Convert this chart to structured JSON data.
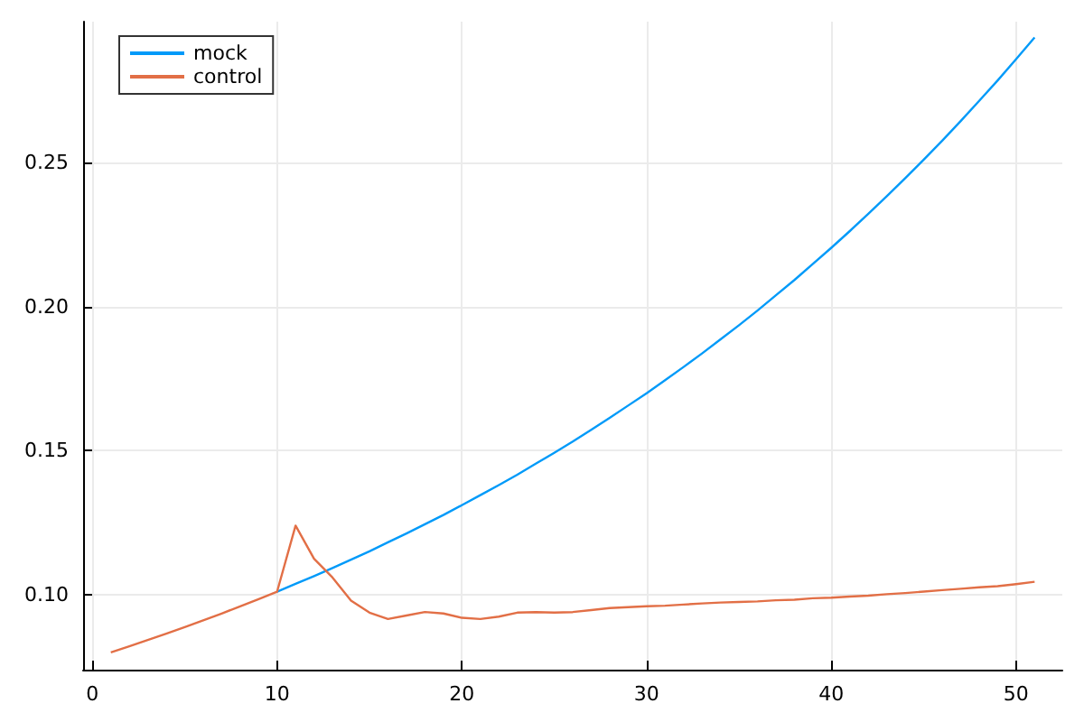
{
  "chart_data": {
    "type": "line",
    "x": [
      1,
      2,
      3,
      4,
      5,
      6,
      7,
      8,
      9,
      10,
      11,
      12,
      13,
      14,
      15,
      16,
      17,
      18,
      19,
      20,
      21,
      22,
      23,
      24,
      25,
      26,
      27,
      28,
      29,
      30,
      31,
      32,
      33,
      34,
      35,
      36,
      37,
      38,
      39,
      40,
      41,
      42,
      43,
      44,
      45,
      46,
      47,
      48,
      49,
      50,
      51
    ],
    "series": [
      {
        "name": "mock",
        "color": "#009af9",
        "values": [
          null,
          null,
          null,
          null,
          null,
          null,
          null,
          null,
          null,
          0.1011,
          0.1038,
          0.1065,
          0.1093,
          0.1122,
          0.1151,
          0.1182,
          0.1213,
          0.1245,
          0.1277,
          0.1311,
          0.1346,
          0.1381,
          0.1417,
          0.1455,
          0.1493,
          0.1532,
          0.1573,
          0.1614,
          0.1657,
          0.17,
          0.1745,
          0.1791,
          0.1838,
          0.1887,
          0.1936,
          0.1987,
          0.204,
          0.2093,
          0.2149,
          0.2205,
          0.2263,
          0.2323,
          0.2384,
          0.2447,
          0.2511,
          0.2577,
          0.2645,
          0.2715,
          0.2786,
          0.286,
          0.2935
        ]
      },
      {
        "name": "control",
        "color": "#e26f46",
        "values": [
          0.08,
          0.0821,
          0.0843,
          0.0865,
          0.0888,
          0.0911,
          0.0935,
          0.096,
          0.0985,
          0.1011,
          0.124,
          0.1125,
          0.106,
          0.098,
          0.0938,
          0.0916,
          0.0928,
          0.094,
          0.0935,
          0.092,
          0.0916,
          0.0924,
          0.0938,
          0.094,
          0.0938,
          0.094,
          0.0947,
          0.0954,
          0.0957,
          0.096,
          0.0962,
          0.0966,
          0.097,
          0.0973,
          0.0975,
          0.0977,
          0.0981,
          0.0983,
          0.0988,
          0.099,
          0.0994,
          0.0997,
          0.1002,
          0.1006,
          0.1011,
          0.1016,
          0.1021,
          0.1026,
          0.103,
          0.1037,
          0.1045
        ]
      }
    ],
    "xlim": [
      -0.5,
      52.5
    ],
    "ylim": [
      0.074,
      0.299
    ],
    "xticks": [
      0,
      10,
      20,
      30,
      40,
      50
    ],
    "yticks": [
      {
        "value": 0.1,
        "label": "0.10"
      },
      {
        "value": 0.15,
        "label": "0.15"
      },
      {
        "value": 0.2,
        "label": "0.20"
      },
      {
        "value": 0.25,
        "label": "0.25"
      }
    ],
    "grid": true,
    "legend": "top left",
    "marker": "none",
    "line_style": "solid"
  }
}
